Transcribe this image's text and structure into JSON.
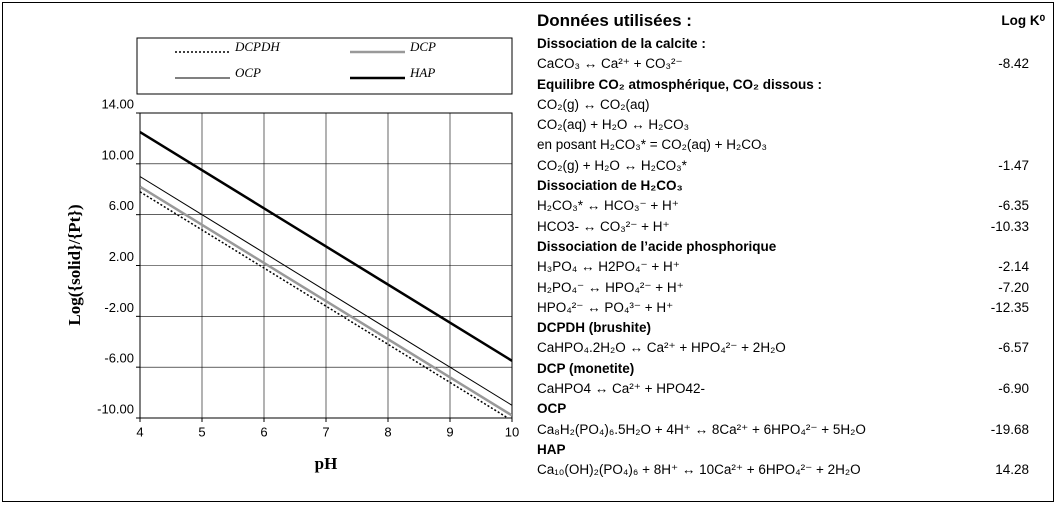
{
  "chart_data": {
    "type": "line",
    "x": [
      4,
      10
    ],
    "series": [
      {
        "name": "DCPDH",
        "color": "#000000",
        "dash": "dotted",
        "width": 1.5,
        "values": [
          7.8,
          -10.2
        ]
      },
      {
        "name": "DCP",
        "color": "#999999",
        "dash": "solid",
        "width": 2.5,
        "values": [
          8.2,
          -9.8
        ]
      },
      {
        "name": "OCP",
        "color": "#000000",
        "dash": "solid",
        "width": 1,
        "values": [
          9.0,
          -9.0
        ]
      },
      {
        "name": "HAP",
        "color": "#000000",
        "dash": "solid",
        "width": 2.5,
        "values": [
          12.5,
          -5.5
        ]
      }
    ],
    "xlabel": "pH",
    "ylabel": "Log({solid}/{Pt})",
    "xlim": [
      4,
      10
    ],
    "xticks": [
      4,
      5,
      6,
      7,
      8,
      9,
      10
    ],
    "ylim": [
      -10,
      14
    ],
    "yticks": [
      {
        "value": -10,
        "label": "-10.00"
      },
      {
        "value": -6,
        "label": "-6.00"
      },
      {
        "value": -2,
        "label": "-2.00"
      },
      {
        "value": 2,
        "label": "2.00"
      },
      {
        "value": 6,
        "label": "6.00"
      },
      {
        "value": 10,
        "label": "10.00"
      },
      {
        "value": 14,
        "label": "14.00"
      }
    ],
    "grid": true
  },
  "table": {
    "title": "Données utilisées :",
    "column": "Log K⁰",
    "sections": [
      {
        "title": "Dissociation de la calcite :",
        "rows": [
          {
            "reaction": "CaCO₃ ↔ Ca²⁺ + CO₃²⁻",
            "logk": "-8.42"
          }
        ]
      },
      {
        "title": "Equilibre CO₂ atmosphérique, CO₂ dissous :",
        "rows": [
          {
            "reaction": "CO₂(g) ↔ CO₂(aq)"
          },
          {
            "reaction": "CO₂(aq) + H₂O ↔ H₂CO₃"
          },
          {
            "reaction": "en posant H₂CO₃* = CO₂(aq) + H₂CO₃"
          },
          {
            "reaction": "CO₂(g) + H₂O ↔ H₂CO₃*",
            "logk": "-1.47"
          }
        ]
      },
      {
        "title": "Dissociation de H₂CO₃",
        "rows": [
          {
            "reaction": "H₂CO₃* ↔ HCO₃⁻ + H⁺",
            "logk": "-6.35"
          },
          {
            "reaction": "HCO3- ↔ CO₃²⁻ + H⁺",
            "logk": "-10.33"
          }
        ]
      },
      {
        "title": "Dissociation de l’acide phosphorique",
        "rows": [
          {
            "reaction": "H₃PO₄ ↔ H2PO₄⁻ + H⁺",
            "logk": "-2.14"
          },
          {
            "reaction": "H₂PO₄⁻ ↔ HPO₄²⁻ + H⁺",
            "logk": "-7.20"
          },
          {
            "reaction": "HPO₄²⁻ ↔ PO₄³⁻ + H⁺",
            "logk": "-12.35"
          }
        ]
      },
      {
        "title": "DCPDH (brushite)",
        "rows": [
          {
            "reaction": "CaHPO₄.2H₂O ↔ Ca²⁺ + HPO₄²⁻ + 2H₂O",
            "logk": "-6.57"
          }
        ]
      },
      {
        "title": "DCP (monetite)",
        "rows": [
          {
            "reaction": "CaHPO4 ↔ Ca²⁺ + HPO42-",
            "logk": "-6.90"
          }
        ]
      },
      {
        "title": "OCP",
        "rows": [
          {
            "reaction": "Ca₈H₂(PO₄)₆.5H₂O + 4H⁺ ↔ 8Ca²⁺ + 6HPO₄²⁻ + 5H₂O",
            "logk": "-19.68"
          }
        ]
      },
      {
        "title": "HAP",
        "rows": [
          {
            "reaction": "Ca₁₀(OH)₂(PO₄)₆ + 8H⁺ ↔ 10Ca²⁺ + 6HPO₄²⁻ + 2H₂O",
            "logk": "14.28"
          }
        ]
      }
    ]
  }
}
